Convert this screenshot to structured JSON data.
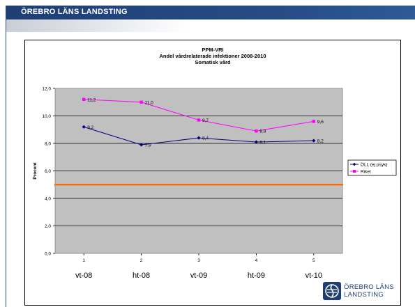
{
  "header": {
    "title": "ÖREBRO LÄNS LANDSTING"
  },
  "chart_data": {
    "type": "line",
    "title": [
      "PPM-VRI",
      "Andel vårdrelaterade infektioner 2008-2010",
      "Somatisk vård"
    ],
    "ylabel": "Procent",
    "xlabel": "",
    "categories": [
      "1",
      "2",
      "3",
      "4",
      "5"
    ],
    "period_labels": [
      "vt-08",
      "ht-08",
      "vt-09",
      "ht-09",
      "vt-10"
    ],
    "ylim": [
      0,
      12
    ],
    "y_ticks": [
      "0,0",
      "2,0",
      "4,0",
      "6,0",
      "8,0",
      "10,0",
      "12,0"
    ],
    "grid": true,
    "legend": "right",
    "series": [
      {
        "name": "ÖLL (ej psyk)",
        "values": [
          9.2,
          7.9,
          8.4,
          8.1,
          8.2
        ],
        "labels": [
          "9,2",
          "7,9",
          "8,4",
          "8,1",
          "8,2"
        ],
        "color": "#000080",
        "marker": "diamond"
      },
      {
        "name": "Riket",
        "values": [
          11.2,
          11.0,
          9.7,
          8.9,
          9.6
        ],
        "labels": [
          "11,2",
          "11,0",
          "9,7",
          "8,9",
          "9,6"
        ],
        "color": "#ff00ff",
        "marker": "square"
      }
    ],
    "reference_line": {
      "value": 5.0,
      "color": "#ff6600"
    },
    "plot_background": "#c0c0c0"
  },
  "logo": {
    "line1": "ÖREBRO LÄNS",
    "line2": "LANDSTING",
    "color": "#1f3f73"
  }
}
